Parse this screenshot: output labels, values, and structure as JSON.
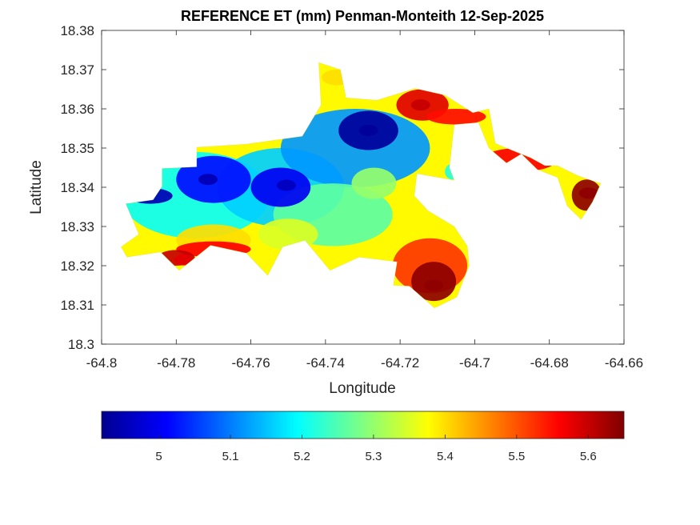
{
  "chart_data": {
    "type": "heatmap",
    "title": "REFERENCE ET (mm) Penman-Monteith 12-Sep-2025",
    "xlabel": "Longitude",
    "ylabel": "Latitude",
    "xlim": [
      -64.8,
      -64.66
    ],
    "ylim": [
      18.3,
      18.38
    ],
    "x_ticks": [
      -64.8,
      -64.78,
      -64.76,
      -64.74,
      -64.72,
      -64.7,
      -64.68,
      -64.66
    ],
    "x_tick_labels": [
      "-64.8",
      "-64.78",
      "-64.76",
      "-64.74",
      "-64.72",
      "-64.7",
      "-64.68",
      "-64.66"
    ],
    "y_ticks": [
      18.3,
      18.31,
      18.32,
      18.33,
      18.34,
      18.35,
      18.36,
      18.37,
      18.38
    ],
    "y_tick_labels": [
      "18.3",
      "18.31",
      "18.32",
      "18.33",
      "18.34",
      "18.35",
      "18.36",
      "18.37",
      "18.38"
    ],
    "colormap": "jet",
    "colorbar": {
      "location": "south",
      "range": [
        4.92,
        5.65
      ],
      "ticks": [
        5,
        5.1,
        5.2,
        5.3,
        5.4,
        5.5,
        5.6
      ],
      "tick_labels": [
        "5",
        "5.1",
        "5.2",
        "5.3",
        "5.4",
        "5.5",
        "5.6"
      ],
      "colors": [
        "#00008f",
        "#0000ff",
        "#0080ff",
        "#00ffff",
        "#80ff80",
        "#ffff00",
        "#ff8000",
        "#ff0000",
        "#800000"
      ]
    },
    "island_outline": [
      [
        -64.7935,
        18.3358
      ],
      [
        -64.7862,
        18.3368
      ],
      [
        -64.7838,
        18.3402
      ],
      [
        -64.7838,
        18.3448
      ],
      [
        -64.7745,
        18.3452
      ],
      [
        -64.7745,
        18.3502
      ],
      [
        -64.7612,
        18.351
      ],
      [
        -64.7462,
        18.353
      ],
      [
        -64.7412,
        18.361
      ],
      [
        -64.7418,
        18.3718
      ],
      [
        -64.736,
        18.37
      ],
      [
        -64.7345,
        18.3628
      ],
      [
        -64.7262,
        18.3622
      ],
      [
        -64.716,
        18.3652
      ],
      [
        -64.708,
        18.3635
      ],
      [
        -64.7005,
        18.359
      ],
      [
        -64.6962,
        18.36
      ],
      [
        -64.6945,
        18.3512
      ],
      [
        -64.6915,
        18.35
      ],
      [
        -64.685,
        18.3475
      ],
      [
        -64.6812,
        18.3455
      ],
      [
        -64.6778,
        18.3455
      ],
      [
        -64.6725,
        18.343
      ],
      [
        -64.668,
        18.3415
      ],
      [
        -64.6662,
        18.341
      ],
      [
        -64.6685,
        18.3362
      ],
      [
        -64.6715,
        18.3318
      ],
      [
        -64.6752,
        18.3352
      ],
      [
        -64.6778,
        18.3425
      ],
      [
        -64.6832,
        18.3445
      ],
      [
        -64.6875,
        18.3485
      ],
      [
        -64.6915,
        18.3462
      ],
      [
        -64.6962,
        18.35
      ],
      [
        -64.699,
        18.3565
      ],
      [
        -64.7055,
        18.356
      ],
      [
        -64.7068,
        18.345
      ],
      [
        -64.7055,
        18.3418
      ],
      [
        -64.7155,
        18.3435
      ],
      [
        -64.7162,
        18.3378
      ],
      [
        -64.7125,
        18.334
      ],
      [
        -64.7055,
        18.33
      ],
      [
        -64.702,
        18.325
      ],
      [
        -64.7015,
        18.32
      ],
      [
        -64.7048,
        18.312
      ],
      [
        -64.7108,
        18.3092
      ],
      [
        -64.7175,
        18.3148
      ],
      [
        -64.7218,
        18.315
      ],
      [
        -64.7208,
        18.321
      ],
      [
        -64.731,
        18.3222
      ],
      [
        -64.7388,
        18.3188
      ],
      [
        -64.7455,
        18.3265
      ],
      [
        -64.7515,
        18.3248
      ],
      [
        -64.7555,
        18.3175
      ],
      [
        -64.7612,
        18.3232
      ],
      [
        -64.7708,
        18.3252
      ],
      [
        -64.7792,
        18.3188
      ],
      [
        -64.7842,
        18.3235
      ],
      [
        -64.7932,
        18.3222
      ],
      [
        -64.7948,
        18.3248
      ],
      [
        -64.79,
        18.328
      ],
      [
        -64.7935,
        18.3358
      ]
    ],
    "annotations": [
      {
        "label": "low (deep blue)",
        "lon": -64.7285,
        "lat": 18.3545,
        "value": 4.93
      },
      {
        "label": "low (deep blue)",
        "lon": -64.7715,
        "lat": 18.342,
        "value": 4.95
      },
      {
        "label": "low (deep blue)",
        "lon": -64.7505,
        "lat": 18.3405,
        "value": 4.96
      },
      {
        "label": "high (dark red)",
        "lon": -64.6695,
        "lat": 18.3385,
        "value": 5.64
      },
      {
        "label": "high (dark red)",
        "lon": -64.711,
        "lat": 18.315,
        "value": 5.64
      },
      {
        "label": "high (dark red)",
        "lon": -64.7145,
        "lat": 18.361,
        "value": 5.6
      },
      {
        "label": "high (red)",
        "lon": -64.778,
        "lat": 18.3215,
        "value": 5.58
      }
    ]
  }
}
